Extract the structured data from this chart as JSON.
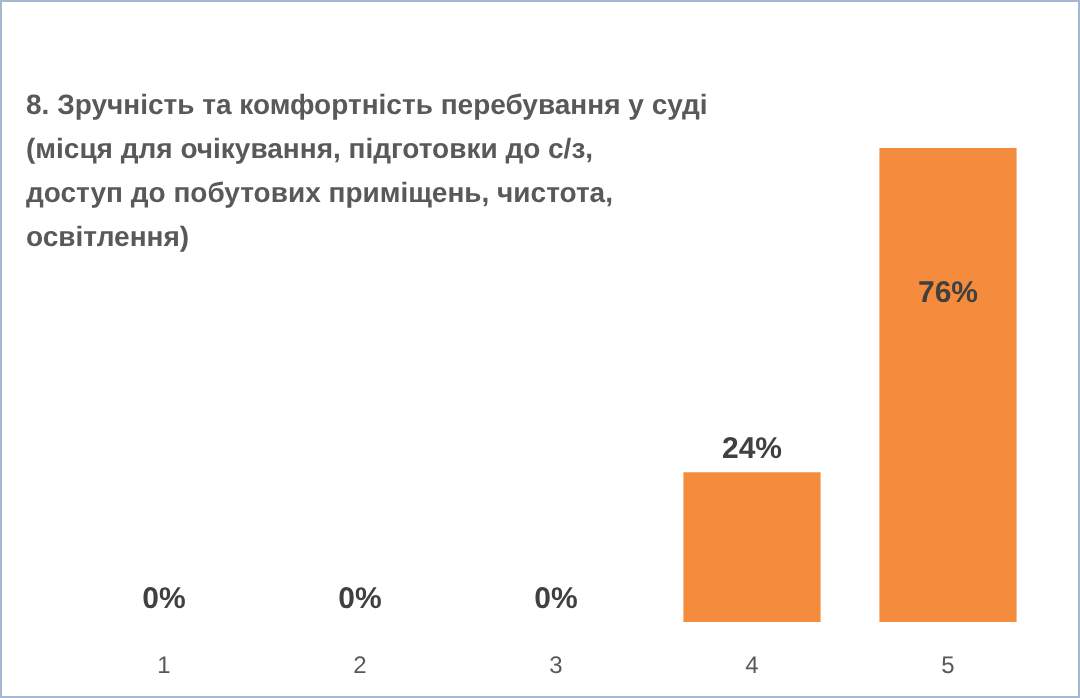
{
  "chart_data": {
    "type": "bar",
    "title": "8. Зручність та комфортність перебування у суді\n(місця для очікування, підготовки до с/з,\nдоступ до побутових приміщень, чистота,\nосвітлення)",
    "categories": [
      "1",
      "2",
      "3",
      "4",
      "5"
    ],
    "values": [
      0,
      0,
      0,
      24,
      76
    ],
    "value_labels": [
      "0%",
      "0%",
      "0%",
      "24%",
      "76%"
    ],
    "color": "#f58b3c"
  }
}
